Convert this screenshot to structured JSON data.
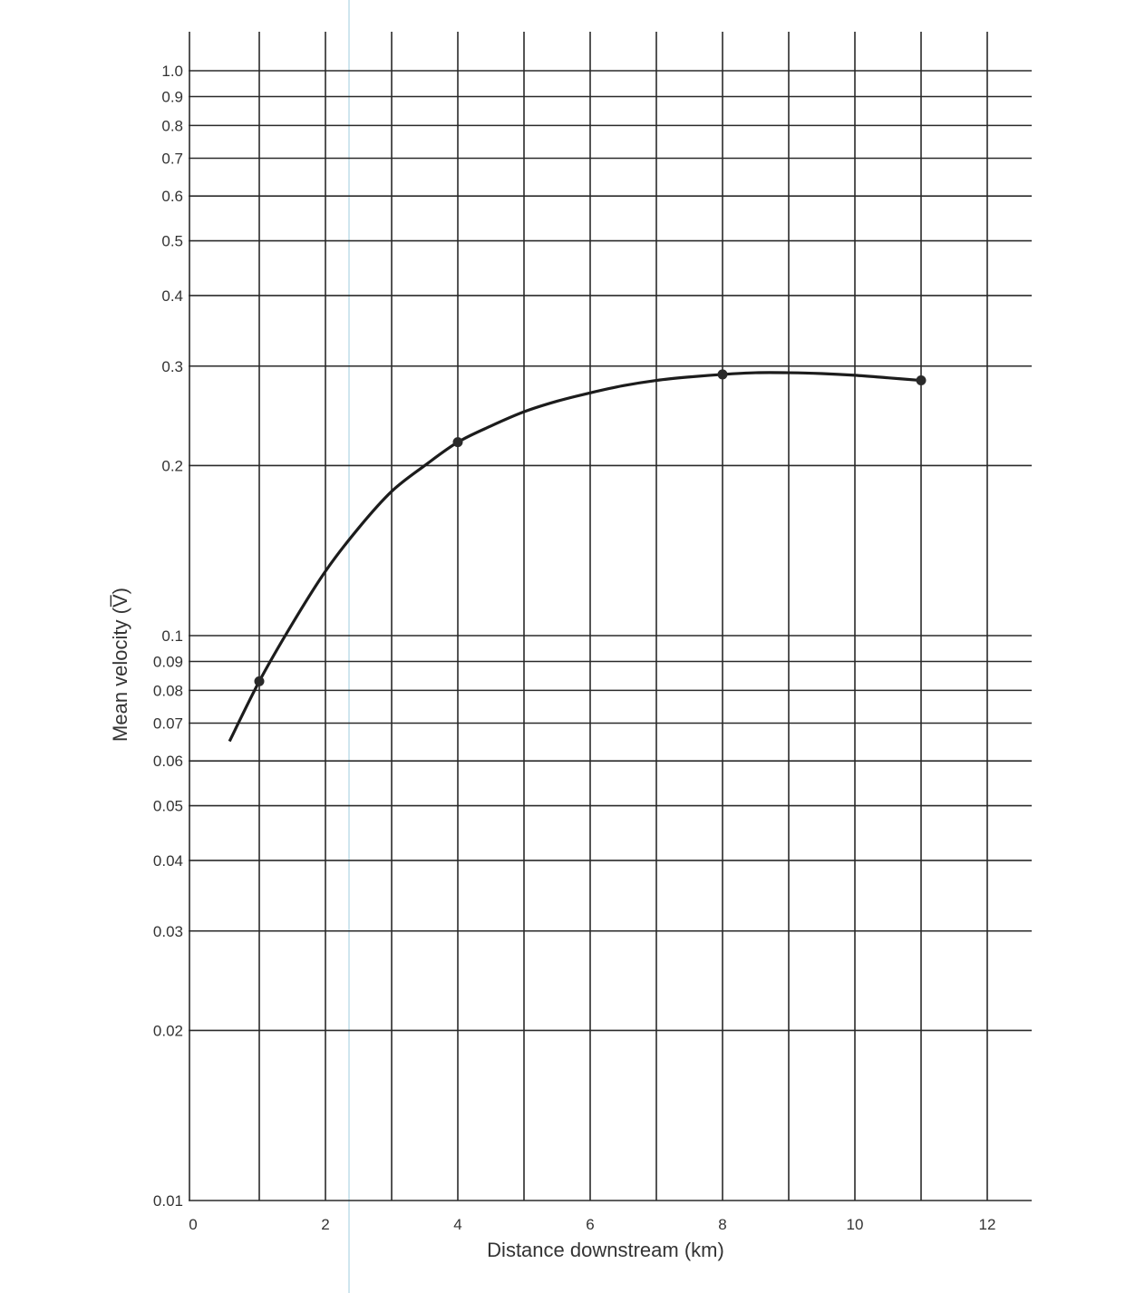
{
  "chart_data": {
    "type": "line",
    "title": "",
    "xlabel": "Distance downstream (km)",
    "ylabel": "Mean velocity (V̅)",
    "xlim": [
      0,
      12.5
    ],
    "ylim": [
      0.01,
      1.2
    ],
    "y_scale": "log",
    "grid": true,
    "x_grid_lines": [
      1,
      2,
      3,
      4,
      5,
      6,
      7,
      8,
      9,
      10,
      11,
      12
    ],
    "y_grid_lines": [
      0.01,
      0.02,
      0.03,
      0.04,
      0.05,
      0.06,
      0.07,
      0.08,
      0.09,
      0.1,
      0.2,
      0.3,
      0.4,
      0.5,
      0.6,
      0.7,
      0.8,
      0.9,
      1.0
    ],
    "x_ticks": [
      {
        "value": 0,
        "label": "0"
      },
      {
        "value": 2,
        "label": "2"
      },
      {
        "value": 4,
        "label": "4"
      },
      {
        "value": 6,
        "label": "6"
      },
      {
        "value": 8,
        "label": "8"
      },
      {
        "value": 10,
        "label": "10"
      },
      {
        "value": 12,
        "label": "12"
      }
    ],
    "y_ticks": [
      {
        "value": 0.01,
        "label": "0.01"
      },
      {
        "value": 0.02,
        "label": "0.02"
      },
      {
        "value": 0.03,
        "label": "0.03"
      },
      {
        "value": 0.04,
        "label": "0.04"
      },
      {
        "value": 0.05,
        "label": "0.05"
      },
      {
        "value": 0.06,
        "label": "0.06"
      },
      {
        "value": 0.07,
        "label": "0.07"
      },
      {
        "value": 0.08,
        "label": "0.08"
      },
      {
        "value": 0.09,
        "label": "0.09"
      },
      {
        "value": 0.1,
        "label": "0.1"
      },
      {
        "value": 0.2,
        "label": "0.2"
      },
      {
        "value": 0.3,
        "label": "0.3"
      },
      {
        "value": 0.4,
        "label": "0.4"
      },
      {
        "value": 0.5,
        "label": "0.5"
      },
      {
        "value": 0.6,
        "label": "0.6"
      },
      {
        "value": 0.7,
        "label": "0.7"
      },
      {
        "value": 0.8,
        "label": "0.8"
      },
      {
        "value": 0.9,
        "label": "0.9"
      },
      {
        "value": 1.0,
        "label": "1.0"
      }
    ],
    "series": [
      {
        "points": [
          {
            "x": 1,
            "y": 0.083
          },
          {
            "x": 4,
            "y": 0.22
          },
          {
            "x": 8,
            "y": 0.29
          },
          {
            "x": 11,
            "y": 0.283
          }
        ],
        "curve": [
          {
            "x": 0.55,
            "y": 0.065
          },
          {
            "x": 1,
            "y": 0.083
          },
          {
            "x": 1.5,
            "y": 0.105
          },
          {
            "x": 2,
            "y": 0.13
          },
          {
            "x": 2.5,
            "y": 0.155
          },
          {
            "x": 3,
            "y": 0.18
          },
          {
            "x": 3.5,
            "y": 0.2
          },
          {
            "x": 4,
            "y": 0.22
          },
          {
            "x": 4.5,
            "y": 0.235
          },
          {
            "x": 5,
            "y": 0.249
          },
          {
            "x": 5.5,
            "y": 0.26
          },
          {
            "x": 6,
            "y": 0.269
          },
          {
            "x": 6.5,
            "y": 0.277
          },
          {
            "x": 7,
            "y": 0.283
          },
          {
            "x": 7.5,
            "y": 0.287
          },
          {
            "x": 8,
            "y": 0.29
          },
          {
            "x": 8.5,
            "y": 0.292
          },
          {
            "x": 9,
            "y": 0.292
          },
          {
            "x": 9.5,
            "y": 0.291
          },
          {
            "x": 10,
            "y": 0.289
          },
          {
            "x": 10.5,
            "y": 0.286
          },
          {
            "x": 11,
            "y": 0.283
          }
        ],
        "color": "#1c1c1c"
      }
    ]
  }
}
